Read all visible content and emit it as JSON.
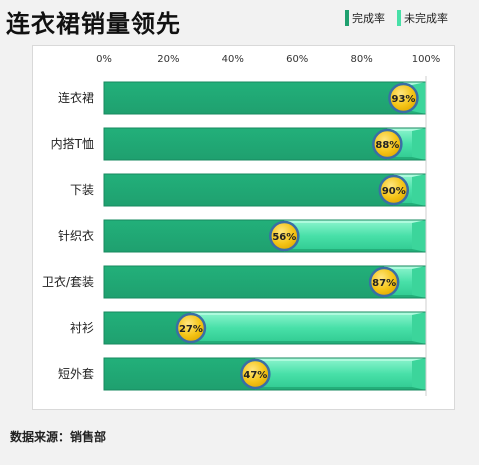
{
  "title": "连衣裙销量领先",
  "legend": {
    "completed": "完成率",
    "uncompleted": "未完成率"
  },
  "footer": "数据来源：销售部",
  "colors": {
    "completed": "#1fa06f",
    "completed_light": "#22b07a",
    "uncompleted": "#48e0a8",
    "uncompleted_light": "#8ff5cf",
    "badge": "#f5c518",
    "badge_border": "#3a6ea5"
  },
  "chart_data": {
    "type": "bar",
    "orientation": "horizontal",
    "stacked": true,
    "categories": [
      "连衣裙",
      "内搭T恤",
      "下装",
      "针织衣",
      "卫衣/套装",
      "衬衫",
      "短外套"
    ],
    "series": [
      {
        "name": "完成率",
        "values": [
          93,
          88,
          90,
          56,
          87,
          27,
          47
        ]
      },
      {
        "name": "未完成率",
        "values": [
          7,
          12,
          10,
          44,
          13,
          73,
          53
        ]
      }
    ],
    "data_labels": [
      "93%",
      "88%",
      "90%",
      "56%",
      "87%",
      "27%",
      "47%"
    ],
    "xticks": [
      "0%",
      "20%",
      "40%",
      "60%",
      "80%",
      "100%"
    ],
    "xlim": [
      0,
      100
    ],
    "grid": false,
    "legend_position": "top-right"
  }
}
